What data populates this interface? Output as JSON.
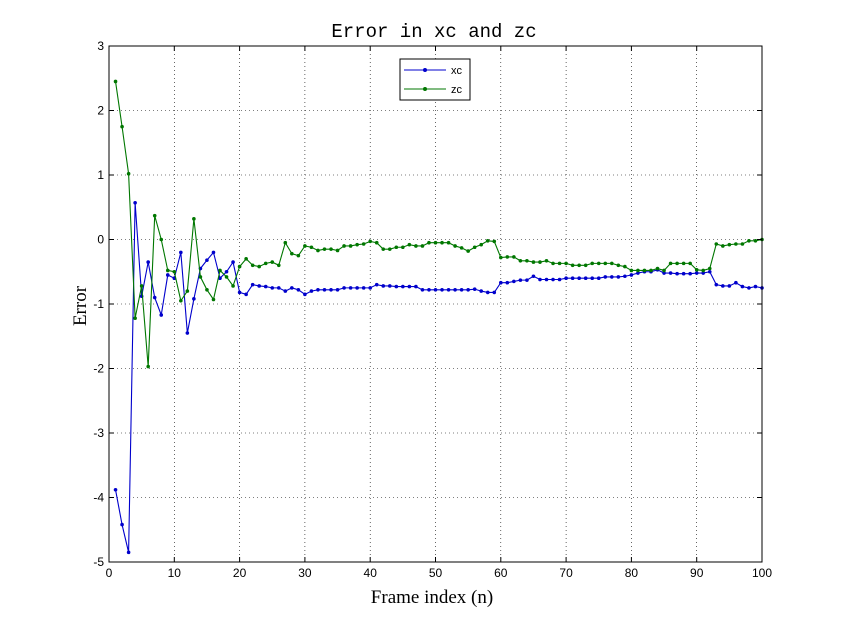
{
  "chart_data": {
    "type": "line",
    "title": "Error in xc and zc",
    "xlabel": "Frame index (n)",
    "ylabel": "Error",
    "xlim": [
      0,
      100
    ],
    "ylim": [
      -5,
      3
    ],
    "xticks": [
      "0",
      "10",
      "20",
      "30",
      "40",
      "50",
      "60",
      "70",
      "80",
      "90",
      "100"
    ],
    "yticks": [
      "-5",
      "-4",
      "-3",
      "-2",
      "-1",
      "0",
      "1",
      "2",
      "3"
    ],
    "grid": true,
    "legend_position": "top-center",
    "x": [
      1,
      2,
      3,
      4,
      5,
      6,
      7,
      8,
      9,
      10,
      11,
      12,
      13,
      14,
      15,
      16,
      17,
      18,
      19,
      20,
      21,
      22,
      23,
      24,
      25,
      26,
      27,
      28,
      29,
      30,
      31,
      32,
      33,
      34,
      35,
      36,
      37,
      38,
      39,
      40,
      41,
      42,
      43,
      44,
      45,
      46,
      47,
      48,
      49,
      50,
      51,
      52,
      53,
      54,
      55,
      56,
      57,
      58,
      59,
      60,
      61,
      62,
      63,
      64,
      65,
      66,
      67,
      68,
      69,
      70,
      71,
      72,
      73,
      74,
      75,
      76,
      77,
      78,
      79,
      80,
      81,
      82,
      83,
      84,
      85,
      86,
      87,
      88,
      89,
      90,
      91,
      92,
      93,
      94,
      95,
      96,
      97,
      98,
      99,
      100
    ],
    "series": [
      {
        "name": "xc",
        "color": "#0000cc",
        "values": [
          -3.88,
          -4.42,
          -4.85,
          0.57,
          -0.88,
          -0.35,
          -0.9,
          -1.17,
          -0.55,
          -0.6,
          -0.2,
          -1.45,
          -0.92,
          -0.45,
          -0.32,
          -0.2,
          -0.6,
          -0.5,
          -0.35,
          -0.82,
          -0.85,
          -0.7,
          -0.72,
          -0.73,
          -0.75,
          -0.75,
          -0.8,
          -0.75,
          -0.78,
          -0.85,
          -0.8,
          -0.78,
          -0.78,
          -0.78,
          -0.78,
          -0.75,
          -0.75,
          -0.75,
          -0.75,
          -0.75,
          -0.7,
          -0.72,
          -0.72,
          -0.73,
          -0.73,
          -0.73,
          -0.73,
          -0.78,
          -0.78,
          -0.78,
          -0.78,
          -0.78,
          -0.78,
          -0.78,
          -0.78,
          -0.77,
          -0.8,
          -0.82,
          -0.82,
          -0.67,
          -0.67,
          -0.65,
          -0.63,
          -0.63,
          -0.57,
          -0.62,
          -0.62,
          -0.62,
          -0.62,
          -0.6,
          -0.6,
          -0.6,
          -0.6,
          -0.6,
          -0.6,
          -0.58,
          -0.58,
          -0.58,
          -0.57,
          -0.55,
          -0.52,
          -0.5,
          -0.5,
          -0.47,
          -0.52,
          -0.52,
          -0.53,
          -0.53,
          -0.53,
          -0.52,
          -0.52,
          -0.5,
          -0.7,
          -0.72,
          -0.72,
          -0.67,
          -0.73,
          -0.75,
          -0.73,
          -0.75
        ]
      },
      {
        "name": "zc",
        "color": "#007700",
        "values": [
          2.45,
          1.75,
          1.02,
          -1.22,
          -0.72,
          -1.97,
          0.37,
          0.0,
          -0.48,
          -0.5,
          -0.95,
          -0.8,
          0.32,
          -0.58,
          -0.78,
          -0.93,
          -0.48,
          -0.58,
          -0.72,
          -0.42,
          -0.3,
          -0.4,
          -0.42,
          -0.37,
          -0.35,
          -0.4,
          -0.05,
          -0.22,
          -0.25,
          -0.1,
          -0.12,
          -0.17,
          -0.15,
          -0.15,
          -0.17,
          -0.1,
          -0.1,
          -0.08,
          -0.07,
          -0.03,
          -0.05,
          -0.15,
          -0.15,
          -0.12,
          -0.12,
          -0.08,
          -0.1,
          -0.1,
          -0.05,
          -0.05,
          -0.05,
          -0.05,
          -0.1,
          -0.13,
          -0.18,
          -0.12,
          -0.08,
          -0.02,
          -0.03,
          -0.28,
          -0.27,
          -0.27,
          -0.33,
          -0.33,
          -0.35,
          -0.35,
          -0.33,
          -0.37,
          -0.37,
          -0.37,
          -0.4,
          -0.4,
          -0.4,
          -0.37,
          -0.37,
          -0.37,
          -0.37,
          -0.4,
          -0.42,
          -0.48,
          -0.48,
          -0.48,
          -0.48,
          -0.45,
          -0.48,
          -0.37,
          -0.37,
          -0.37,
          -0.37,
          -0.47,
          -0.48,
          -0.45,
          -0.07,
          -0.1,
          -0.08,
          -0.07,
          -0.07,
          -0.02,
          -0.02,
          0.0
        ]
      }
    ]
  }
}
